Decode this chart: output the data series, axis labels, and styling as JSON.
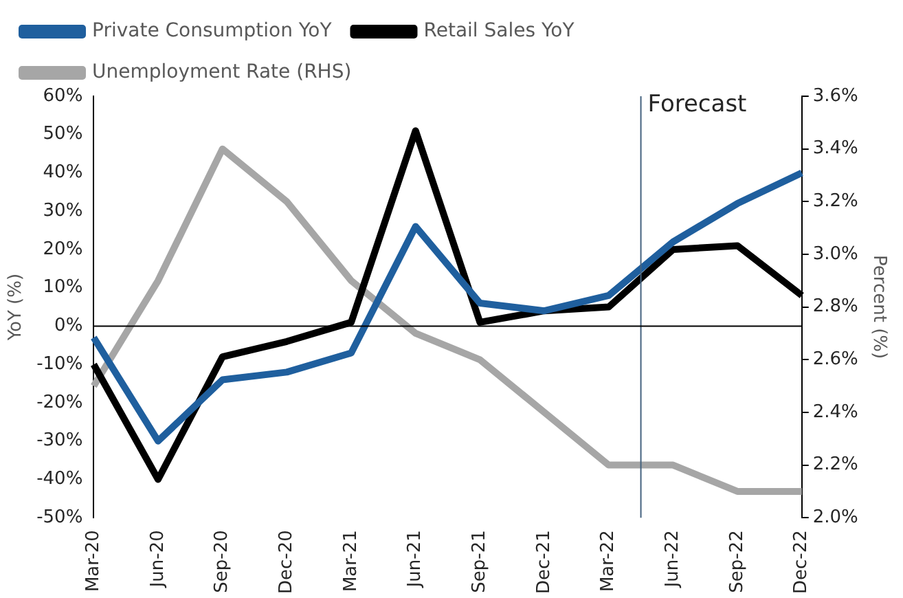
{
  "chart_data": {
    "type": "line",
    "categories": [
      "Mar-20",
      "Jun-20",
      "Sep-20",
      "Dec-20",
      "Mar-21",
      "Jun-21",
      "Sep-21",
      "Dec-21",
      "Mar-22",
      "Jun-22",
      "Sep-22",
      "Dec-22"
    ],
    "series": [
      {
        "name": "Private Consumption YoY",
        "color": "#1f5f9e",
        "values": [
          -3,
          -30,
          -14,
          -12,
          -7,
          26,
          6,
          4,
          8,
          22,
          32,
          40
        ]
      },
      {
        "name": "Retail Sales YoY",
        "color": "#000000",
        "values": [
          -10,
          -40,
          -8,
          -4,
          1,
          51,
          1,
          4,
          5,
          20,
          21,
          8
        ]
      },
      {
        "name": "Unemployment Rate (RHS)",
        "color": "#a6a6a6",
        "axis": "y2",
        "values": [
          2.5,
          2.9,
          3.4,
          3.2,
          2.9,
          2.7,
          2.6,
          2.4,
          2.2,
          2.2,
          2.1,
          2.1
        ]
      }
    ],
    "ylabel": "YoY (%)",
    "y2label": "Percent (%)",
    "ylim": [
      -50,
      60
    ],
    "yticks": [
      {
        "value": -50,
        "label": "-50%"
      },
      {
        "value": -40,
        "label": "-40%"
      },
      {
        "value": -30,
        "label": "-30%"
      },
      {
        "value": -20,
        "label": "-20%"
      },
      {
        "value": -10,
        "label": "-10%"
      },
      {
        "value": 0,
        "label": "0%"
      },
      {
        "value": 10,
        "label": "10%"
      },
      {
        "value": 20,
        "label": "20%"
      },
      {
        "value": 30,
        "label": "30%"
      },
      {
        "value": 40,
        "label": "40%"
      },
      {
        "value": 50,
        "label": "50%"
      },
      {
        "value": 60,
        "label": "60%"
      }
    ],
    "y2lim": [
      2.0,
      3.6
    ],
    "y2ticks": [
      {
        "value": 2.0,
        "label": "2.0%"
      },
      {
        "value": 2.2,
        "label": "2.2%"
      },
      {
        "value": 2.4,
        "label": "2.4%"
      },
      {
        "value": 2.6,
        "label": "2.6%"
      },
      {
        "value": 2.8,
        "label": "2.8%"
      },
      {
        "value": 3.0,
        "label": "3.0%"
      },
      {
        "value": 3.2,
        "label": "3.2%"
      },
      {
        "value": 3.4,
        "label": "3.4%"
      },
      {
        "value": 3.6,
        "label": "3.6%"
      }
    ],
    "ref_lines": [
      {
        "axis": "x",
        "value": "Mar-22",
        "label": "Forecast",
        "color": "#44627f"
      },
      {
        "axis": "y",
        "value": 0,
        "color": "#000000"
      }
    ],
    "grid": false,
    "legend": "top",
    "marker": "none",
    "line_style": "solid"
  }
}
